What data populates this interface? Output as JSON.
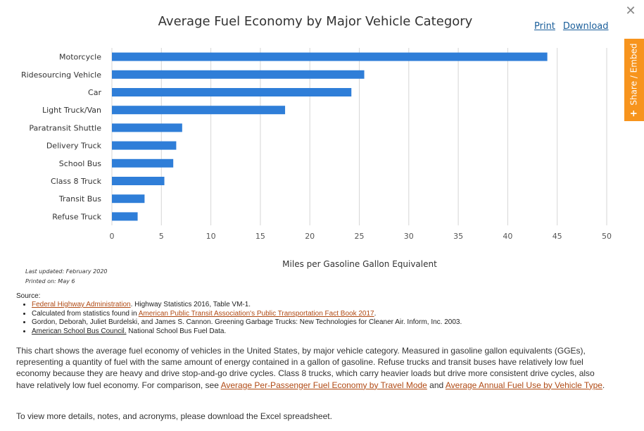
{
  "controls": {
    "close": "✕",
    "share_embed": "Share / Embed",
    "share_plus": "+",
    "print": "Print",
    "download": "Download"
  },
  "meta": {
    "last_updated": "Last updated: February 2020",
    "printed_on": "Printed on: May 6"
  },
  "chart_data": {
    "type": "bar",
    "orientation": "horizontal",
    "title": "Average Fuel Economy by Major Vehicle Category",
    "xlabel": "Miles per Gasoline Gallon Equivalent",
    "ylabel": "",
    "xlim": [
      0,
      50
    ],
    "xticks": [
      0,
      5,
      10,
      15,
      20,
      25,
      30,
      35,
      40,
      45,
      50
    ],
    "grid": true,
    "bar_color": "#2f7ed8",
    "categories": [
      "Motorcycle",
      "Ridesourcing Vehicle",
      "Car",
      "Light Truck/Van",
      "Paratransit Shuttle",
      "Delivery Truck",
      "School Bus",
      "Class 8 Truck",
      "Transit Bus",
      "Refuse Truck"
    ],
    "values": [
      44.0,
      25.5,
      24.2,
      17.5,
      7.1,
      6.5,
      6.2,
      5.3,
      3.3,
      2.6
    ]
  },
  "source": {
    "heading": "Source:",
    "items": [
      {
        "link": "Federal Highway Administration",
        "text": ". Highway Statistics 2016, Table VM-1."
      },
      {
        "pre": "Calculated from statistics found in ",
        "link": "American Public Transit Association's Public Transportation Fact Book 2017",
        "text": "."
      },
      {
        "text": "Gordon, Deborah, Juliet Burdelski, and James S. Cannon. Greening Garbage Trucks: New Technologies for Cleaner Air. Inform, Inc. 2003."
      },
      {
        "link": "American School Bus Council.",
        "text": " National School Bus Fuel Data."
      }
    ]
  },
  "description": {
    "text": "This chart shows the average fuel economy of vehicles in the United States, by major vehicle category. Measured in gasoline gallon equivalents (GGEs), representing a quantity of fuel with the same amount of energy contained in a gallon of gasoline. Refuse trucks and transit buses have relatively low fuel economy because they are heavy and drive stop-and-go drive cycles. Class 8 trucks, which carry heavier loads but drive more consistent drive cycles, also have relatively low fuel economy. For comparison, see ",
    "link1": "Average Per-Passenger Fuel Economy by Travel Mode",
    "mid": " and ",
    "link2": "Average Annual Fuel Use by Vehicle Type",
    "end": "."
  },
  "footer": "To view more details, notes, and acronyms, please download the Excel spreadsheet."
}
